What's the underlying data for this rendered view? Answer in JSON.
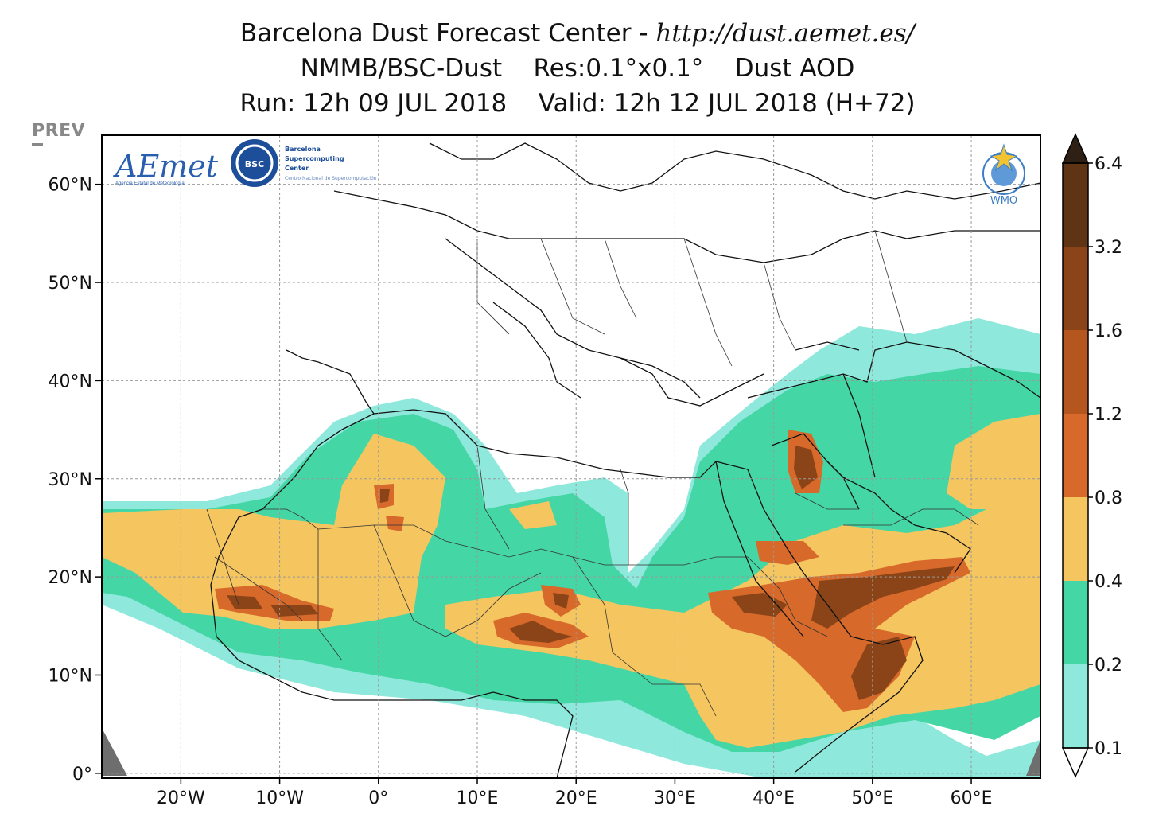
{
  "header": {
    "line1_text": "Barcelona Dust Forecast Center - ",
    "line1_url": "http://dust.aemet.es/",
    "line2": "NMMB/BSC-Dust    Res:0.1°x0.1°    Dust AOD",
    "line3": "Run: 12h 09 JUL 2018    Valid: 12h 12 JUL 2018 (H+72)"
  },
  "nav": {
    "prev_label": "PREV"
  },
  "logos": {
    "aemet": "AEmet",
    "aemet_sub": "Agencia Estatal de Meteorología",
    "bsc": "BSC",
    "bsc_text1": "Barcelona",
    "bsc_text2": "Supercomputing",
    "bsc_text3": "Center",
    "bsc_text4": "Centro Nacional de Supercomputación",
    "wmo": "WMO"
  },
  "map": {
    "lat_labels": [
      "60°N",
      "50°N",
      "40°N",
      "30°N",
      "20°N",
      "10°N",
      "0°"
    ],
    "lon_labels": [
      "20°W",
      "10°W",
      "0°",
      "10°E",
      "20°E",
      "30°E",
      "40°E",
      "50°E",
      "60°E"
    ],
    "lon_range": [
      -28,
      67
    ],
    "lat_range": [
      -0.5,
      65
    ]
  },
  "colorbar": {
    "levels": [
      "0.1",
      "0.2",
      "0.4",
      "0.8",
      "1.2",
      "1.6",
      "3.2",
      "6.4"
    ],
    "colors": [
      "#8fe8dc",
      "#45d6a6",
      "#f5c55f",
      "#d7692a",
      "#b4561e",
      "#8a4418",
      "#5e3414",
      "#2e2015"
    ]
  },
  "palette": {
    "aod_01": "#8fe8dc",
    "aod_02": "#45d6a6",
    "aod_04": "#f5c55f",
    "aod_08": "#d7692a",
    "aod_12": "#b4561e",
    "aod_16": "#8a4418"
  }
}
